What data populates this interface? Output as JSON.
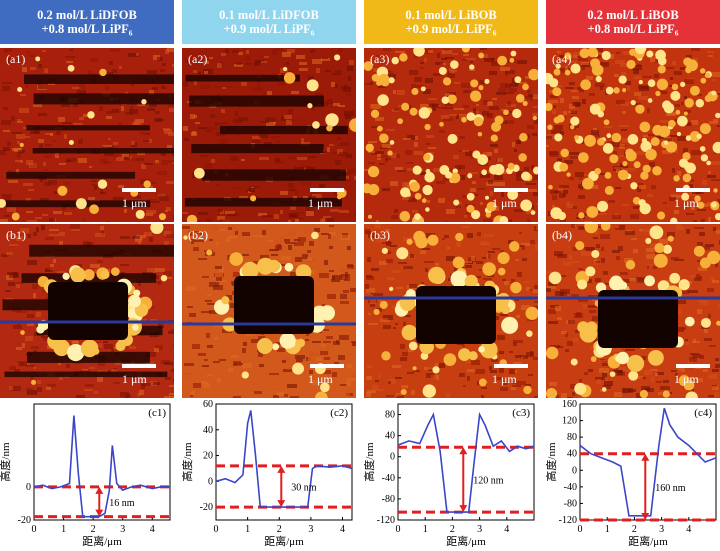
{
  "columns": [
    {
      "id": "1",
      "line1": "0.2 mol/L LiDFOB",
      "line2": "+0.8 mol/L LiPF₆",
      "color": "#3f6cc0"
    },
    {
      "id": "2",
      "line1": "0.1 mol/L LiDFOB",
      "line2": "+0.9 mol/L LiPF₆",
      "color": "#8fd5ee"
    },
    {
      "id": "3",
      "line1": "0.1 mol/L LiBOB",
      "line2": "+0.9 mol/L LiPF₆",
      "color": "#f1b917"
    },
    {
      "id": "4",
      "line1": "0.2 mol/L LiBOB",
      "line2": "+0.8 mol/L LiPF₆",
      "color": "#e53239"
    }
  ],
  "panels_a": [
    "(a1)",
    "(a2)",
    "(a3)",
    "(a4)"
  ],
  "panels_b": [
    "(b1)",
    "(b2)",
    "(b3)",
    "(b4)"
  ],
  "scale_label": "1 μm",
  "chart_data": [
    {
      "type": "line",
      "label": "(c1)",
      "ylabel": "高度/nm",
      "xlabel": "距离/μm",
      "xlim": [
        0,
        4.6
      ],
      "ylim": [
        -20,
        50
      ],
      "yticks": [
        -20,
        0
      ],
      "xticks": [
        0,
        1,
        2,
        3,
        4
      ],
      "x": [
        0,
        0.3,
        0.6,
        0.9,
        1.2,
        1.35,
        1.5,
        1.65,
        1.8,
        2.0,
        2.2,
        2.4,
        2.55,
        2.65,
        2.8,
        3.0,
        3.3,
        3.6,
        4.0,
        4.3,
        4.6
      ],
      "y": [
        0,
        1,
        -1,
        0,
        2,
        43,
        8,
        -18,
        -18,
        -18,
        -18,
        -16,
        -2,
        25,
        2,
        -2,
        0,
        1,
        -1,
        0,
        0
      ],
      "step_levels": [
        0,
        -18
      ],
      "annotation": "16 nm"
    },
    {
      "type": "line",
      "label": "(c2)",
      "ylabel": "高度/nm",
      "xlabel": "距离/μm",
      "xlim": [
        0,
        4.3
      ],
      "ylim": [
        -30,
        60
      ],
      "yticks": [
        -20,
        0,
        20,
        40,
        60
      ],
      "xticks": [
        0,
        1,
        2,
        3,
        4
      ],
      "x": [
        0,
        0.3,
        0.6,
        0.85,
        1.0,
        1.1,
        1.25,
        1.4,
        1.6,
        2.0,
        2.5,
        2.9,
        3.05,
        3.2,
        3.6,
        4.0,
        4.3
      ],
      "y": [
        0,
        2,
        -1,
        5,
        45,
        55,
        20,
        -20,
        -20,
        -20,
        -20,
        -20,
        10,
        12,
        11,
        12,
        10
      ],
      "step_levels": [
        12,
        -20
      ],
      "annotation": "30 nm"
    },
    {
      "type": "line",
      "label": "(c3)",
      "ylabel": "高度/nm",
      "xlabel": "距离/μm",
      "xlim": [
        0,
        5
      ],
      "ylim": [
        -120,
        100
      ],
      "yticks": [
        -120,
        -80,
        -40,
        0,
        40,
        80
      ],
      "xticks": [
        0,
        1,
        2,
        3,
        4
      ],
      "x": [
        0,
        0.4,
        0.8,
        1.1,
        1.3,
        1.55,
        1.8,
        2.2,
        2.6,
        2.8,
        3.0,
        3.2,
        3.5,
        3.8,
        4.1,
        4.4,
        4.7,
        5.0
      ],
      "y": [
        22,
        30,
        25,
        60,
        80,
        10,
        -105,
        -105,
        -105,
        -10,
        80,
        60,
        20,
        30,
        10,
        20,
        15,
        20
      ],
      "step_levels": [
        18,
        -105
      ],
      "annotation": "120 nm"
    },
    {
      "type": "line",
      "label": "(c4)",
      "ylabel": "高度/nm",
      "xlabel": "距离/μm",
      "xlim": [
        0,
        5
      ],
      "ylim": [
        -120,
        160
      ],
      "yticks": [
        -120,
        -80,
        -40,
        0,
        40,
        80,
        120,
        160
      ],
      "xticks": [
        0,
        1,
        2,
        3,
        4
      ],
      "x": [
        0,
        0.4,
        0.8,
        1.2,
        1.5,
        1.8,
        2.2,
        2.6,
        2.9,
        3.1,
        3.3,
        3.6,
        4.0,
        4.3,
        4.6,
        5.0
      ],
      "y": [
        60,
        40,
        30,
        20,
        10,
        -110,
        -110,
        -110,
        60,
        150,
        110,
        80,
        60,
        40,
        20,
        30
      ],
      "step_levels": [
        40,
        -120
      ],
      "annotation": "160 nm"
    }
  ]
}
